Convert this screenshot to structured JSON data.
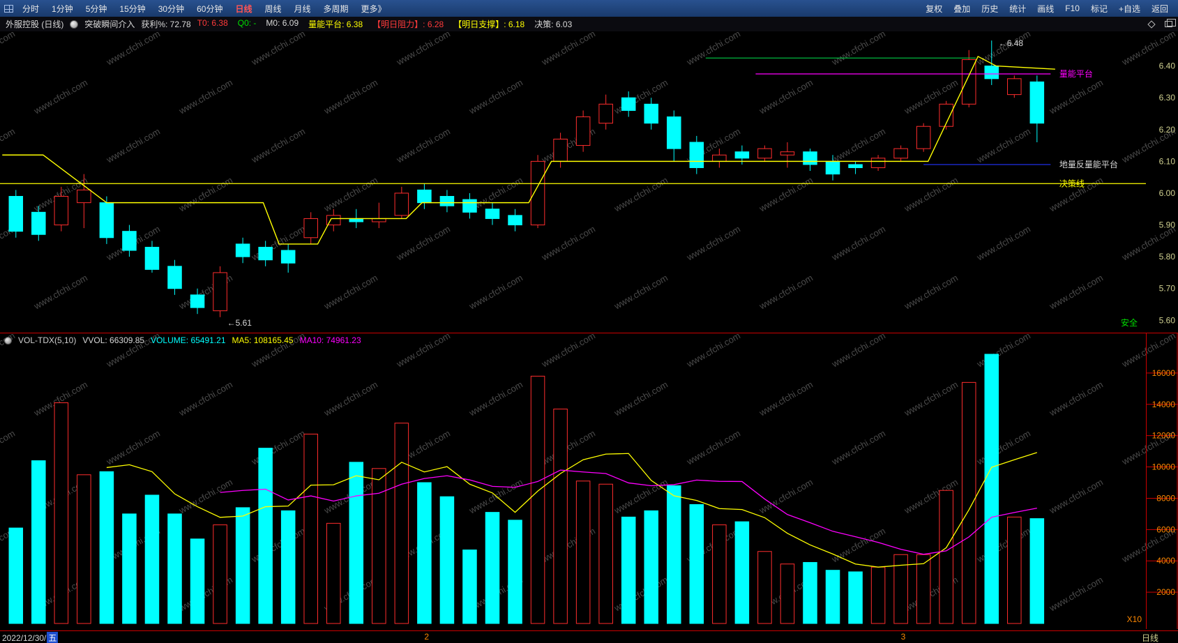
{
  "colors": {
    "up": "#ff2d2d",
    "down": "#00ffff",
    "yellow": "#ffff00",
    "magenta": "#ff00ff",
    "green": "#00cc44",
    "blue": "#2233ff",
    "axis_price": "#cfcf8f",
    "axis_volume": "#ff8800",
    "grid_red": "#cc0000"
  },
  "topbar": {
    "left_items": [
      "分时",
      "1分钟",
      "5分钟",
      "15分钟",
      "30分钟",
      "60分钟",
      "日线",
      "周线",
      "月线",
      "多周期",
      "更多》"
    ],
    "active": "日线",
    "right_items": [
      "复权",
      "叠加",
      "历史",
      "统计",
      "画线",
      "F10",
      "标记",
      "+自选",
      "返回"
    ]
  },
  "infobar": {
    "title": "外服控股 (日线)",
    "signal": "突破瞬间介入",
    "profit": "获利%: 72.78",
    "fields": [
      {
        "text": "T0: 6.38",
        "color": "#ff3a3a"
      },
      {
        "text": "Q0: -",
        "color": "#00dd00"
      },
      {
        "text": "M0: 6.09",
        "color": "#d8d8d8"
      },
      {
        "text": "量能平台: 6.38",
        "color": "#ffff00"
      },
      {
        "text": "【明日阻力】: 6.28",
        "color": "#ff3a3a"
      },
      {
        "text": "【明日支撑】: 6.18",
        "color": "#ffff00"
      },
      {
        "text": "决策: 6.03",
        "color": "#d8d8d8"
      }
    ]
  },
  "volume_header": {
    "name": "VOL-TDX(5,10)",
    "fields": [
      {
        "text": "VVOL: 66309.85",
        "color": "#d8d8d8"
      },
      {
        "text": "VOLUME: 65491.21",
        "color": "#00ffff"
      },
      {
        "text": "MA5: 108165.45",
        "color": "#ffff00"
      },
      {
        "text": "MA10: 74961.23",
        "color": "#ff00ff"
      }
    ]
  },
  "statusbar": {
    "date_prefix": "2022/12/30/",
    "date_day": "五",
    "month_markers": [
      {
        "label": "2",
        "index": 18
      },
      {
        "label": "3",
        "index": 39
      }
    ],
    "period_label": "日线"
  },
  "watermark": {
    "text": "www.cfchi.com"
  },
  "chart_data": [
    {
      "type": "candlestick",
      "title": "外服控股 日线K线",
      "ylim": [
        5.57,
        6.5
      ],
      "yticks": [
        6.4,
        6.3,
        6.2,
        6.1,
        6.0,
        5.9,
        5.8,
        5.7,
        5.6
      ],
      "candles": [
        {
          "o": 5.99,
          "h": 6.01,
          "l": 5.86,
          "c": 5.88
        },
        {
          "o": 5.94,
          "h": 5.96,
          "l": 5.85,
          "c": 5.87
        },
        {
          "o": 5.9,
          "h": 6.02,
          "l": 5.88,
          "c": 5.99
        },
        {
          "o": 5.97,
          "h": 6.06,
          "l": 5.89,
          "c": 6.01
        },
        {
          "o": 5.97,
          "h": 5.99,
          "l": 5.84,
          "c": 5.86
        },
        {
          "o": 5.88,
          "h": 5.9,
          "l": 5.8,
          "c": 5.82
        },
        {
          "o": 5.83,
          "h": 5.85,
          "l": 5.75,
          "c": 5.76
        },
        {
          "o": 5.77,
          "h": 5.79,
          "l": 5.68,
          "c": 5.7
        },
        {
          "o": 5.68,
          "h": 5.7,
          "l": 5.62,
          "c": 5.64
        },
        {
          "o": 5.63,
          "h": 5.77,
          "l": 5.61,
          "c": 5.75
        },
        {
          "o": 5.84,
          "h": 5.86,
          "l": 5.78,
          "c": 5.8
        },
        {
          "o": 5.83,
          "h": 5.85,
          "l": 5.77,
          "c": 5.79
        },
        {
          "o": 5.82,
          "h": 5.84,
          "l": 5.75,
          "c": 5.78
        },
        {
          "o": 5.86,
          "h": 5.94,
          "l": 5.84,
          "c": 5.92
        },
        {
          "o": 5.9,
          "h": 5.95,
          "l": 5.88,
          "c": 5.93
        },
        {
          "o": 5.92,
          "h": 5.95,
          "l": 5.89,
          "c": 5.91
        },
        {
          "o": 5.91,
          "h": 5.97,
          "l": 5.89,
          "c": 5.92
        },
        {
          "o": 5.93,
          "h": 6.02,
          "l": 5.92,
          "c": 6.0
        },
        {
          "o": 6.01,
          "h": 6.03,
          "l": 5.95,
          "c": 5.97
        },
        {
          "o": 5.99,
          "h": 6.01,
          "l": 5.94,
          "c": 5.96
        },
        {
          "o": 5.98,
          "h": 6.0,
          "l": 5.92,
          "c": 5.94
        },
        {
          "o": 5.95,
          "h": 5.97,
          "l": 5.9,
          "c": 5.92
        },
        {
          "o": 5.93,
          "h": 5.95,
          "l": 5.88,
          "c": 5.9
        },
        {
          "o": 5.9,
          "h": 6.12,
          "l": 5.89,
          "c": 6.1
        },
        {
          "o": 6.1,
          "h": 6.19,
          "l": 6.08,
          "c": 6.17
        },
        {
          "o": 6.15,
          "h": 6.26,
          "l": 6.13,
          "c": 6.24
        },
        {
          "o": 6.22,
          "h": 6.31,
          "l": 6.2,
          "c": 6.28
        },
        {
          "o": 6.3,
          "h": 6.32,
          "l": 6.24,
          "c": 6.26
        },
        {
          "o": 6.28,
          "h": 6.3,
          "l": 6.2,
          "c": 6.22
        },
        {
          "o": 6.24,
          "h": 6.26,
          "l": 6.1,
          "c": 6.14
        },
        {
          "o": 6.16,
          "h": 6.18,
          "l": 6.06,
          "c": 6.08
        },
        {
          "o": 6.1,
          "h": 6.14,
          "l": 6.08,
          "c": 6.12
        },
        {
          "o": 6.13,
          "h": 6.15,
          "l": 6.09,
          "c": 6.11
        },
        {
          "o": 6.11,
          "h": 6.15,
          "l": 6.1,
          "c": 6.14
        },
        {
          "o": 6.12,
          "h": 6.16,
          "l": 6.08,
          "c": 6.13
        },
        {
          "o": 6.13,
          "h": 6.14,
          "l": 6.07,
          "c": 6.09
        },
        {
          "o": 6.1,
          "h": 6.12,
          "l": 6.04,
          "c": 6.06
        },
        {
          "o": 6.09,
          "h": 6.1,
          "l": 6.06,
          "c": 6.08
        },
        {
          "o": 6.08,
          "h": 6.12,
          "l": 6.07,
          "c": 6.11
        },
        {
          "o": 6.11,
          "h": 6.15,
          "l": 6.1,
          "c": 6.14
        },
        {
          "o": 6.14,
          "h": 6.22,
          "l": 6.13,
          "c": 6.21
        },
        {
          "o": 6.21,
          "h": 6.29,
          "l": 6.2,
          "c": 6.28
        },
        {
          "o": 6.28,
          "h": 6.45,
          "l": 6.27,
          "c": 6.42
        },
        {
          "o": 6.4,
          "h": 6.48,
          "l": 6.34,
          "c": 6.36
        },
        {
          "o": 6.31,
          "h": 6.37,
          "l": 6.3,
          "c": 6.36
        },
        {
          "o": 6.35,
          "h": 6.37,
          "l": 6.16,
          "c": 6.22
        }
      ],
      "overlays": {
        "label_anchor_index": 45.8,
        "decision_step_line": {
          "color": "#ffff00",
          "points": [
            [
              -0.6,
              6.12
            ],
            [
              1.2,
              6.12
            ],
            [
              4.0,
              5.97
            ],
            [
              10.9,
              5.97
            ],
            [
              11.6,
              5.84
            ],
            [
              13.3,
              5.84
            ],
            [
              13.9,
              5.92
            ],
            [
              17.2,
              5.92
            ],
            [
              17.9,
              5.97
            ],
            [
              22.6,
              5.97
            ],
            [
              23.6,
              6.1
            ],
            [
              40.2,
              6.1
            ],
            [
              42.4,
              6.43
            ],
            [
              43.2,
              6.4
            ],
            [
              45.8,
              6.39
            ]
          ]
        },
        "horizontal_lines": [
          {
            "price": 6.03,
            "color": "#ffff00",
            "from": -1,
            "to": 99,
            "label": "决策线",
            "name": "decision-line-label"
          },
          {
            "price": 6.425,
            "color": "#00cc44",
            "from": 30.4,
            "to": 42.3,
            "name": "green-level-line"
          },
          {
            "price": 6.375,
            "color": "#ff00ff",
            "from": 32.6,
            "to": 45.6,
            "label": "量能平台",
            "name": "volume-platform-label"
          },
          {
            "price": 6.09,
            "color": "#2233ff",
            "from": 40.0,
            "to": 45.6,
            "label": "地量反量能平台",
            "label_color": "#d8d8d8",
            "name": "low-volume-platform-label"
          }
        ],
        "annotations": [
          {
            "text": "←6.48",
            "index": 43,
            "ref": "high",
            "color": "#d8d8d8",
            "name": "high-price-annotation"
          },
          {
            "text": "←5.61",
            "index": 9,
            "ref": "low",
            "color": "#d8d8d8",
            "name": "low-price-annotation"
          }
        ],
        "corner_label": {
          "text": "安全",
          "color": "#00dd00",
          "name": "safety-label"
        }
      }
    },
    {
      "type": "bar",
      "title": "成交量 VOL-TDX",
      "unit_label": "X10",
      "ylim": [
        0,
        18000
      ],
      "yticks": [
        16000,
        14000,
        12000,
        10000,
        8000,
        6000,
        4000,
        2000
      ],
      "values": [
        6100,
        10400,
        14100,
        9500,
        9700,
        7000,
        8200,
        7000,
        5400,
        6300,
        7400,
        11200,
        7200,
        12100,
        6400,
        10300,
        9900,
        12800,
        9000,
        8100,
        4700,
        7100,
        6600,
        15800,
        13700,
        9100,
        8900,
        6800,
        7200,
        8800,
        7600,
        6300,
        6500,
        4600,
        3800,
        3900,
        3400,
        3300,
        3600,
        4400,
        4400,
        8500,
        15400,
        17200,
        6800,
        6700
      ],
      "ma5_period": 5,
      "ma10_period": 10,
      "ma5_color": "#ffff00",
      "ma10_color": "#ff00ff"
    }
  ]
}
